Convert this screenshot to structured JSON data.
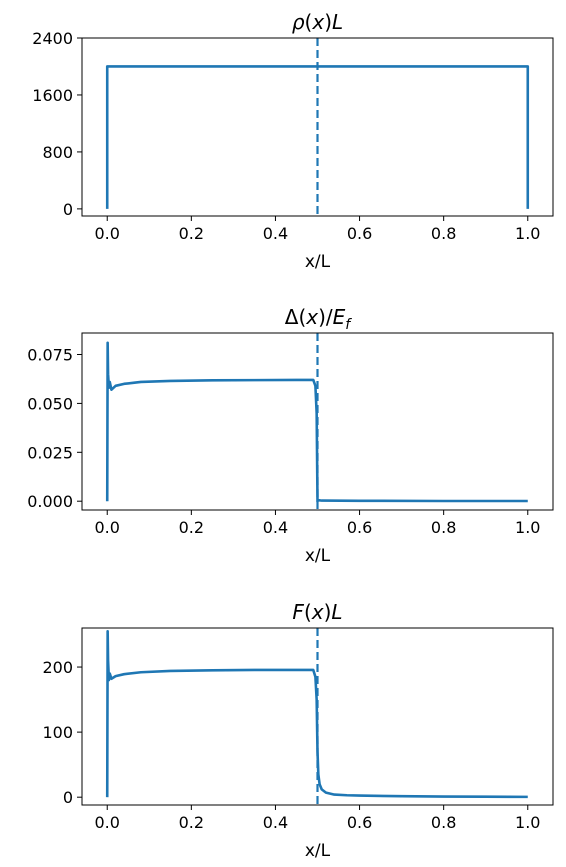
{
  "colors": {
    "series": "#1f77b4",
    "axes": "#000000",
    "background": "#ffffff"
  },
  "chart_data": [
    {
      "type": "line",
      "title": "ρ(x)L",
      "xlabel": "x/L",
      "ylabel": "",
      "xlim": [
        -0.06,
        1.06
      ],
      "ylim": [
        -100,
        2400
      ],
      "xticks": [
        0.0,
        0.2,
        0.4,
        0.6,
        0.8,
        1.0
      ],
      "xtick_labels": [
        "0.0",
        "0.2",
        "0.4",
        "0.6",
        "0.8",
        "1.0"
      ],
      "yticks": [
        0,
        800,
        1600,
        2400
      ],
      "ytick_labels": [
        "0",
        "800",
        "1600",
        "2400"
      ],
      "vline_x": 0.5,
      "grid": false,
      "series": [
        {
          "x": [
            0.0,
            0.0,
            1.0,
            1.0
          ],
          "y": [
            0,
            2000,
            2000,
            0
          ]
        }
      ]
    },
    {
      "type": "line",
      "title": "Δ(x)/E_f",
      "xlabel": "x/L",
      "ylabel": "",
      "xlim": [
        -0.06,
        1.06
      ],
      "ylim": [
        -0.0045,
        0.086
      ],
      "xticks": [
        0.0,
        0.2,
        0.4,
        0.6,
        0.8,
        1.0
      ],
      "xtick_labels": [
        "0.0",
        "0.2",
        "0.4",
        "0.6",
        "0.8",
        "1.0"
      ],
      "yticks": [
        0.0,
        0.025,
        0.05,
        0.075
      ],
      "ytick_labels": [
        "0.000",
        "0.025",
        "0.050",
        "0.075"
      ],
      "vline_x": 0.5,
      "grid": false,
      "series": [
        {
          "x": [
            0.0,
            0.001,
            0.002,
            0.004,
            0.006,
            0.01,
            0.02,
            0.04,
            0.08,
            0.15,
            0.25,
            0.35,
            0.45,
            0.49,
            0.495,
            0.498,
            0.5,
            0.502,
            0.51,
            0.6,
            0.8,
            1.0
          ],
          "y": [
            0.0,
            0.081,
            0.065,
            0.058,
            0.061,
            0.057,
            0.059,
            0.06,
            0.061,
            0.0615,
            0.0618,
            0.0619,
            0.062,
            0.062,
            0.059,
            0.045,
            0.0,
            0.0005,
            0.0003,
            0.0002,
            0.0001,
            0.0001
          ]
        }
      ]
    },
    {
      "type": "line",
      "title": "F(x)L",
      "xlabel": "x/L",
      "ylabel": "",
      "xlim": [
        -0.06,
        1.06
      ],
      "ylim": [
        -12,
        260
      ],
      "xticks": [
        0.0,
        0.2,
        0.4,
        0.6,
        0.8,
        1.0
      ],
      "xtick_labels": [
        "0.0",
        "0.2",
        "0.4",
        "0.6",
        "0.8",
        "1.0"
      ],
      "yticks": [
        0,
        100,
        200
      ],
      "ytick_labels": [
        "0",
        "100",
        "200"
      ],
      "vline_x": 0.5,
      "grid": false,
      "series": [
        {
          "x": [
            0.0,
            0.001,
            0.002,
            0.004,
            0.006,
            0.01,
            0.02,
            0.04,
            0.08,
            0.15,
            0.25,
            0.35,
            0.45,
            0.49,
            0.495,
            0.498,
            0.5,
            0.502,
            0.505,
            0.51,
            0.52,
            0.54,
            0.57,
            0.6,
            0.7,
            0.8,
            0.9,
            1.0
          ],
          "y": [
            0,
            255,
            210,
            180,
            190,
            182,
            186,
            189,
            192,
            194,
            195,
            195.5,
            195.5,
            195.5,
            185,
            150,
            70,
            35,
            20,
            12,
            7,
            4,
            3,
            2.5,
            1.5,
            1,
            0.8,
            0.5
          ]
        }
      ]
    }
  ]
}
